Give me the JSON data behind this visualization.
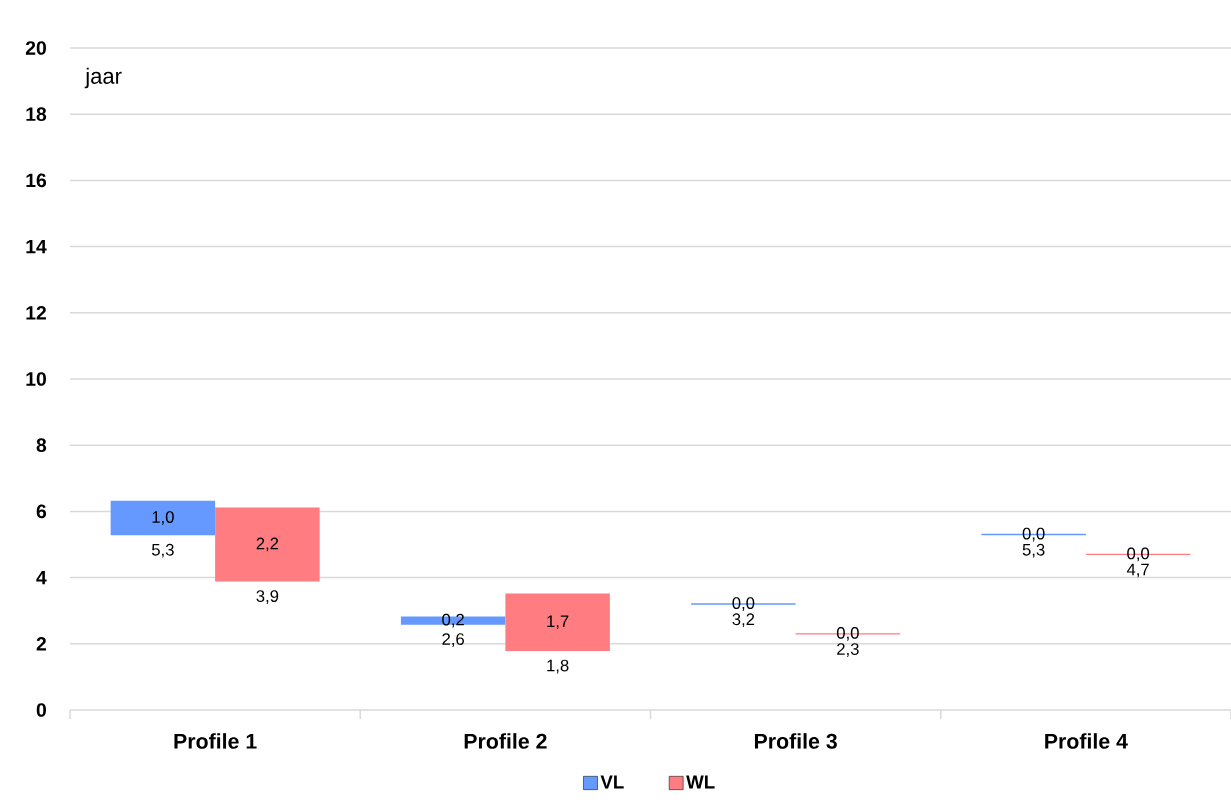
{
  "chart_data": {
    "type": "bar",
    "ylabel": "jaar",
    "categories": [
      "Profile 1",
      "Profile 2",
      "Profile 3",
      "Profile 4"
    ],
    "series": [
      {
        "name": "VL",
        "color": "#6699ff",
        "base": [
          5.3,
          2.6,
          3.2,
          5.3
        ],
        "values": [
          1.0,
          0.2,
          0.0,
          0.0
        ],
        "value_labels": [
          "1,0",
          "0,2",
          "0,0",
          "0,0"
        ]
      },
      {
        "name": "WL",
        "color": "#ff7c80",
        "base": [
          3.9,
          1.8,
          2.3,
          4.7
        ],
        "values": [
          2.2,
          1.7,
          0.0,
          0.0
        ],
        "value_labels": [
          "2,2",
          "1,7",
          "0,0",
          "0,0"
        ]
      }
    ],
    "ylim": [
      0,
      20
    ],
    "yticks": [
      0,
      2,
      4,
      6,
      8,
      10,
      12,
      14,
      16,
      18,
      20
    ],
    "grid": "y",
    "legend": "bottom",
    "annotations": [
      {
        "text": "5,3",
        "x": "Profile 1",
        "y": 5.3
      },
      {
        "text": "3,9",
        "x": "Profile 1",
        "y": 3.9
      },
      {
        "text": "2,6",
        "x": "Profile 2",
        "y": 2.6
      },
      {
        "text": "1,8",
        "x": "Profile 2",
        "y": 1.8
      },
      {
        "text": "3,2",
        "x": "Profile 3",
        "y": 3.2
      },
      {
        "text": "2,3",
        "x": "Profile 3",
        "y": 2.3
      },
      {
        "text": "5,3",
        "x": "Profile 4",
        "y": 5.3
      },
      {
        "text": "4,7",
        "x": "Profile 4",
        "y": 4.7
      }
    ]
  }
}
